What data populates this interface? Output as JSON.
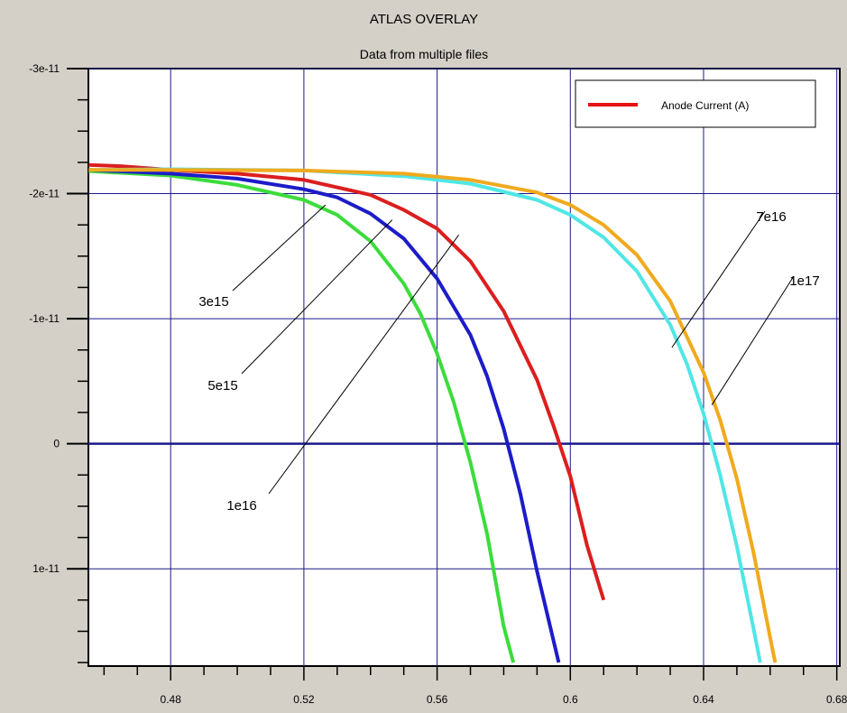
{
  "chart_data": {
    "type": "line",
    "title": "ATLAS OVERLAY",
    "subtitle": "Data from multiple files",
    "xlabel": "",
    "ylabel": "",
    "xlim": [
      0.4553,
      0.6809
    ],
    "ylim": [
      -3e-11,
      1.778e-11
    ],
    "y_inverted": true,
    "grid": true,
    "legend": {
      "position": "top-right",
      "entries": [
        {
          "label": "Anode Current (A)",
          "color": "#e81010"
        }
      ]
    },
    "x_ticks": [
      {
        "value": 0.48,
        "label": "0.48"
      },
      {
        "value": 0.52,
        "label": "0.52"
      },
      {
        "value": 0.56,
        "label": "0.56"
      },
      {
        "value": 0.6,
        "label": "0.6"
      },
      {
        "value": 0.64,
        "label": "0.64"
      },
      {
        "value": 0.68,
        "label": "0.68"
      }
    ],
    "y_ticks": [
      {
        "value": -3e-11,
        "label": "-3e-11"
      },
      {
        "value": -2e-11,
        "label": "-2e-11"
      },
      {
        "value": -1e-11,
        "label": "-1e-11"
      },
      {
        "value": 0,
        "label": "0"
      },
      {
        "value": 1e-11,
        "label": "1e-11"
      }
    ],
    "series": [
      {
        "color": "#3cdc3c",
        "points": [
          [
            0.4554,
            -2.18e-11
          ],
          [
            0.48,
            -2.145e-11
          ],
          [
            0.5,
            -2.07e-11
          ],
          [
            0.52,
            -1.95e-11
          ],
          [
            0.53,
            -1.83e-11
          ],
          [
            0.54,
            -1.62e-11
          ],
          [
            0.55,
            -1.28e-11
          ],
          [
            0.555,
            -1.04e-11
          ],
          [
            0.56,
            -7.2e-12
          ],
          [
            0.565,
            -3.3e-12
          ],
          [
            0.57,
            1.5e-12
          ],
          [
            0.575,
            7.2e-12
          ],
          [
            0.58,
            1.46e-11
          ],
          [
            0.5829,
            1.75e-11
          ]
        ]
      },
      {
        "color": "#1c1cc8",
        "points": [
          [
            0.4554,
            -2.19e-11
          ],
          [
            0.48,
            -2.16e-11
          ],
          [
            0.5,
            -2.12e-11
          ],
          [
            0.52,
            -2.035e-11
          ],
          [
            0.53,
            -1.97e-11
          ],
          [
            0.54,
            -1.84e-11
          ],
          [
            0.55,
            -1.64e-11
          ],
          [
            0.56,
            -1.32e-11
          ],
          [
            0.57,
            -8.7e-12
          ],
          [
            0.575,
            -5.4e-12
          ],
          [
            0.58,
            -1.2e-12
          ],
          [
            0.585,
            4e-12
          ],
          [
            0.59,
            1.02e-11
          ],
          [
            0.5965,
            1.75e-11
          ]
        ]
      },
      {
        "color": "#dc1e1e",
        "points": [
          [
            0.4554,
            -2.23e-11
          ],
          [
            0.465,
            -2.22e-11
          ],
          [
            0.48,
            -2.19e-11
          ],
          [
            0.5,
            -2.16e-11
          ],
          [
            0.52,
            -2.11e-11
          ],
          [
            0.54,
            -1.99e-11
          ],
          [
            0.55,
            -1.87e-11
          ],
          [
            0.56,
            -1.72e-11
          ],
          [
            0.57,
            -1.46e-11
          ],
          [
            0.58,
            -1.06e-11
          ],
          [
            0.59,
            -5.1e-12
          ],
          [
            0.595,
            -1.4e-12
          ],
          [
            0.6,
            2.6e-12
          ],
          [
            0.605,
            8.1e-12
          ],
          [
            0.61,
            1.25e-11
          ]
        ]
      },
      {
        "color": "#50e6e6",
        "points": [
          [
            0.4554,
            -2.19e-11
          ],
          [
            0.48,
            -2.195e-11
          ],
          [
            0.52,
            -2.185e-11
          ],
          [
            0.55,
            -2.14e-11
          ],
          [
            0.57,
            -2.08e-11
          ],
          [
            0.59,
            -1.95e-11
          ],
          [
            0.6,
            -1.83e-11
          ],
          [
            0.61,
            -1.65e-11
          ],
          [
            0.62,
            -1.38e-11
          ],
          [
            0.63,
            -9.5e-12
          ],
          [
            0.635,
            -6.4e-12
          ],
          [
            0.64,
            -2.4e-12
          ],
          [
            0.645,
            2.5e-12
          ],
          [
            0.65,
            8.2e-12
          ],
          [
            0.655,
            1.48e-11
          ],
          [
            0.657,
            1.75e-11
          ]
        ]
      },
      {
        "color": "#f0aa1e",
        "points": [
          [
            0.4554,
            -2.19e-11
          ],
          [
            0.48,
            -2.19e-11
          ],
          [
            0.52,
            -2.185e-11
          ],
          [
            0.55,
            -2.16e-11
          ],
          [
            0.57,
            -2.11e-11
          ],
          [
            0.59,
            -2.01e-11
          ],
          [
            0.6,
            -1.91e-11
          ],
          [
            0.61,
            -1.75e-11
          ],
          [
            0.62,
            -1.51e-11
          ],
          [
            0.63,
            -1.14e-11
          ],
          [
            0.64,
            -5.7e-12
          ],
          [
            0.645,
            -1.9e-12
          ],
          [
            0.65,
            2.8e-12
          ],
          [
            0.655,
            8.7e-12
          ],
          [
            0.66,
            1.55e-11
          ],
          [
            0.6615,
            1.75e-11
          ]
        ]
      }
    ],
    "annotations": [
      {
        "text": "3e15",
        "point": [
          0.5265,
          -1.91e-11
        ]
      },
      {
        "text": "5e15",
        "point": [
          0.5465,
          -1.79e-11
        ]
      },
      {
        "text": "1e16",
        "point": [
          0.5665,
          -1.67e-11
        ]
      },
      {
        "text": "7e16",
        "point": [
          0.6305,
          -7.7e-12
        ]
      },
      {
        "text": "1e17",
        "point": [
          0.6425,
          -3.1e-12
        ]
      }
    ]
  }
}
